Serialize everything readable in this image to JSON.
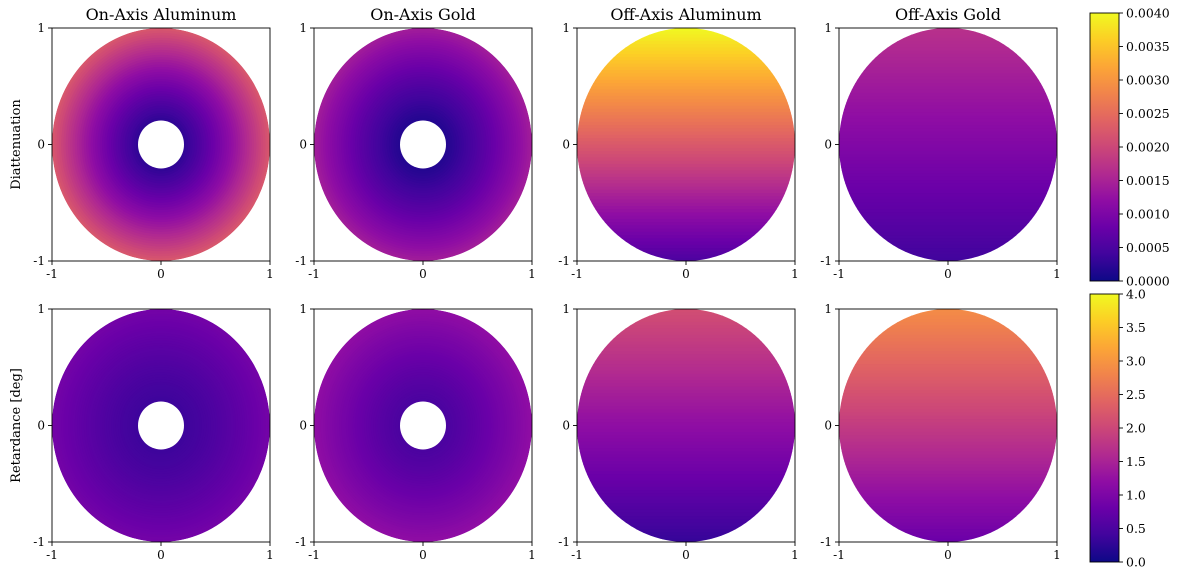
{
  "chart_data": {
    "type": "heatmap",
    "colormap": "plasma",
    "columns": [
      "On-Axis Aluminum",
      "On-Axis Gold",
      "Off-Axis Aluminum",
      "Off-Axis Gold"
    ],
    "rows": [
      {
        "ylabel": "Diattenuation",
        "vlim": [
          0,
          0.004
        ],
        "colorbar_ticks": [
          "0.0000",
          "0.0005",
          "0.0010",
          "0.0015",
          "0.0020",
          "0.0025",
          "0.0030",
          "0.0035",
          "0.0040"
        ],
        "panels": [
          {
            "column": "On-Axis Aluminum",
            "pattern": "radial",
            "obscuration": true,
            "center_value": 0.0,
            "edge_value": 0.0022
          },
          {
            "column": "On-Axis Gold",
            "pattern": "radial",
            "obscuration": true,
            "center_value": 0.0,
            "edge_value": 0.0014
          },
          {
            "column": "Off-Axis Aluminum",
            "pattern": "vertical",
            "obscuration": false,
            "bottom_value": 0.0005,
            "top_value": 0.004
          },
          {
            "column": "Off-Axis Gold",
            "pattern": "vertical",
            "obscuration": false,
            "bottom_value": 0.0004,
            "top_value": 0.0017
          }
        ]
      },
      {
        "ylabel": "Retardance [deg]",
        "vlim": [
          0,
          4.0
        ],
        "colorbar_ticks": [
          "0.0",
          "0.5",
          "1.0",
          "1.5",
          "2.0",
          "2.5",
          "3.0",
          "3.5",
          "4.0"
        ],
        "panels": [
          {
            "column": "On-Axis Aluminum",
            "pattern": "radial",
            "obscuration": true,
            "center_value": 0.3,
            "edge_value": 0.9
          },
          {
            "column": "On-Axis Gold",
            "pattern": "radial",
            "obscuration": true,
            "center_value": 0.4,
            "edge_value": 1.2
          },
          {
            "column": "Off-Axis Aluminum",
            "pattern": "vertical",
            "obscuration": false,
            "bottom_value": 0.3,
            "top_value": 2.1
          },
          {
            "column": "Off-Axis Gold",
            "pattern": "vertical",
            "obscuration": false,
            "bottom_value": 0.8,
            "top_value": 2.9
          }
        ]
      }
    ],
    "x_ticks": [
      "-1",
      "0",
      "1"
    ],
    "y_ticks": [
      "-1",
      "0",
      "1"
    ],
    "xlim": [
      -1,
      1
    ],
    "ylim": [
      -1,
      1
    ],
    "grid": false
  }
}
